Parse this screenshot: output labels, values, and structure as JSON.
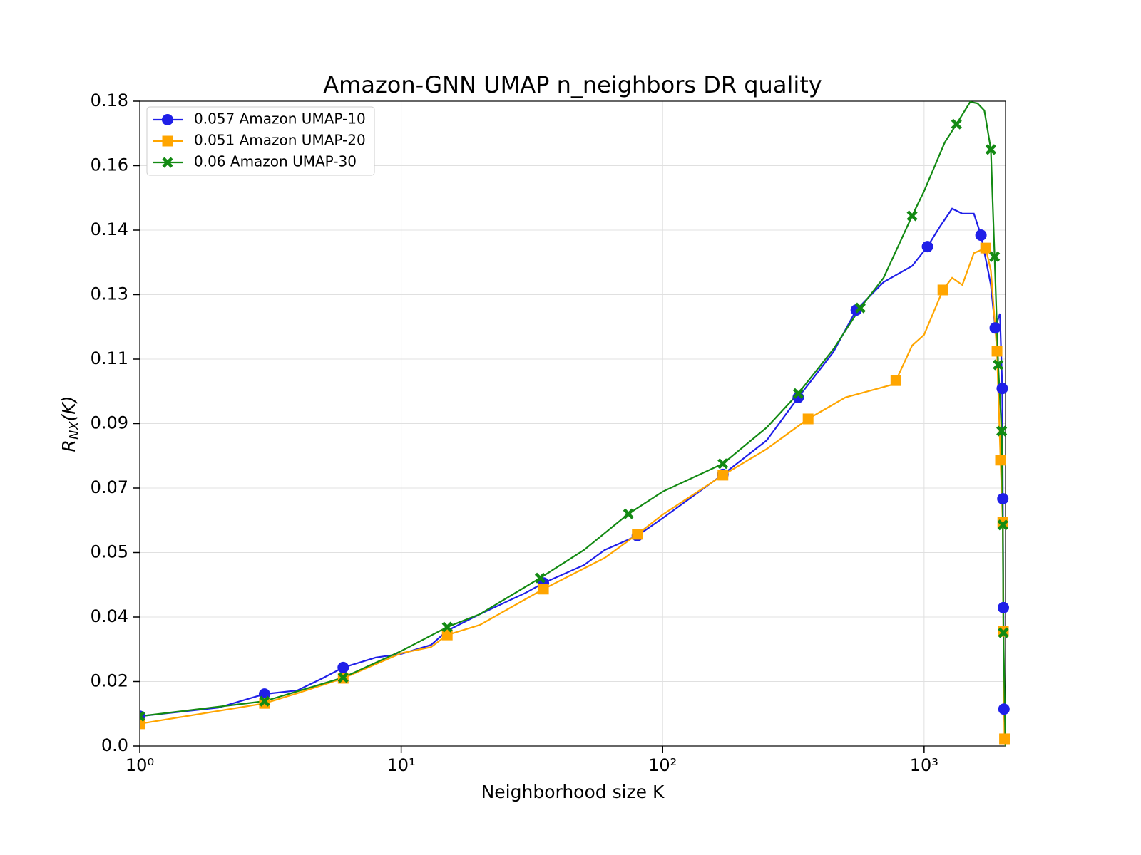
{
  "chart_data": {
    "type": "line",
    "title": "Amazon-GNN UMAP n_neighbors DR quality",
    "xlabel": "Neighborhood size K",
    "ylabel": {
      "main": "R",
      "sub": "NX",
      "rest": "(K)"
    },
    "xscale": "log",
    "grid": true,
    "legend": "upper left",
    "xlim": [
      1,
      2048
    ],
    "ylim": [
      0,
      0.18
    ],
    "xticks": [
      {
        "value": 1,
        "label": "10⁰"
      },
      {
        "value": 10,
        "label": "10¹"
      },
      {
        "value": 100,
        "label": "10²"
      },
      {
        "value": 1000,
        "label": "10³"
      }
    ],
    "yticks": [
      {
        "value": 0,
        "label": "0.0"
      },
      {
        "value": 0.018,
        "label": "0.02"
      },
      {
        "value": 0.036,
        "label": "0.04"
      },
      {
        "value": 0.054,
        "label": "0.05"
      },
      {
        "value": 0.072,
        "label": "0.07"
      },
      0.09,
      {
        "value": 0.108,
        "label": "0.11"
      },
      {
        "value": 0.126,
        "label": "0.13"
      },
      {
        "value": 0.144,
        "label": "0.14"
      },
      {
        "value": 0.162,
        "label": "0.16"
      },
      0.18
    ],
    "series": [
      {
        "name": "0.057 Amazon UMAP-10",
        "color": "#1f1fe8",
        "marker": "circle",
        "x": [
          1,
          2,
          3,
          4,
          5,
          6,
          8,
          10,
          13,
          15,
          20,
          30,
          35,
          50,
          60,
          80,
          100,
          170,
          250,
          330,
          450,
          550,
          700,
          900,
          1030,
          1150,
          1280,
          1400,
          1550,
          1650,
          1800,
          1870,
          1950,
          1990,
          2000,
          2010,
          2020,
          2047
        ],
        "values": [
          0.0083,
          0.0107,
          0.0145,
          0.0155,
          0.0189,
          0.0219,
          0.0247,
          0.0257,
          0.0282,
          0.0322,
          0.0368,
          0.0428,
          0.0455,
          0.0505,
          0.0547,
          0.0587,
          0.0636,
          0.0758,
          0.0853,
          0.0973,
          0.11,
          0.1217,
          0.1295,
          0.134,
          0.1394,
          0.145,
          0.15,
          0.1486,
          0.1486,
          0.1426,
          0.1287,
          0.1167,
          0.1207,
          0.0998,
          0.069,
          0.0386,
          0.0103,
          0
        ],
        "marker_x": [
          1,
          3,
          6,
          35,
          80,
          170,
          330,
          550,
          1030,
          1650,
          1870,
          1990,
          2000,
          2010,
          2020
        ],
        "marker_values": [
          0.0083,
          0.0145,
          0.0219,
          0.0455,
          0.0587,
          0.0758,
          0.0973,
          0.1217,
          0.1394,
          0.1426,
          0.1167,
          0.0998,
          0.069,
          0.0386,
          0.0103
        ]
      },
      {
        "name": "0.051 Amazon UMAP-20",
        "color": "#ffa500",
        "marker": "square",
        "x": [
          1,
          3,
          4,
          6,
          10,
          13,
          15,
          20,
          35,
          60,
          80,
          100,
          170,
          250,
          360,
          500,
          750,
          780,
          900,
          1000,
          1180,
          1280,
          1400,
          1550,
          1720,
          1800,
          1900,
          1960,
          2000,
          2010,
          2030,
          2047
        ],
        "values": [
          0.0062,
          0.0119,
          0.0147,
          0.0189,
          0.0259,
          0.0276,
          0.031,
          0.0338,
          0.0438,
          0.0525,
          0.0591,
          0.0646,
          0.0756,
          0.0829,
          0.0913,
          0.0973,
          0.1008,
          0.102,
          0.1118,
          0.1148,
          0.1273,
          0.1307,
          0.1287,
          0.1376,
          0.139,
          0.1327,
          0.1102,
          0.0798,
          0.0624,
          0.032,
          0.002,
          0
        ],
        "marker_x": [
          1,
          3,
          6,
          15,
          35,
          80,
          170,
          360,
          780,
          1180,
          1720,
          1900,
          1960,
          2000,
          2010,
          2030
        ],
        "marker_values": [
          0.0062,
          0.0119,
          0.0189,
          0.031,
          0.0438,
          0.0591,
          0.0756,
          0.0913,
          0.102,
          0.1273,
          0.139,
          0.1102,
          0.0798,
          0.0624,
          0.032,
          0.002
        ]
      },
      {
        "name": "0.06 Amazon UMAP-30",
        "color": "#138a13",
        "marker": "x",
        "x": [
          1,
          3,
          6,
          10,
          15,
          20,
          34,
          50,
          74,
          100,
          170,
          250,
          330,
          450,
          570,
          700,
          900,
          1000,
          1200,
          1330,
          1500,
          1600,
          1700,
          1800,
          1860,
          1920,
          1980,
          2000,
          2010,
          2047
        ],
        "values": [
          0.0083,
          0.0125,
          0.0191,
          0.0265,
          0.0332,
          0.0368,
          0.0469,
          0.0547,
          0.0648,
          0.071,
          0.0788,
          0.0889,
          0.0984,
          0.1108,
          0.1223,
          0.1307,
          0.148,
          0.1549,
          0.1685,
          0.1736,
          0.1798,
          0.1794,
          0.1774,
          0.1665,
          0.1366,
          0.1064,
          0.0879,
          0.0617,
          0.0316,
          0
        ],
        "marker_x": [
          1,
          3,
          6,
          15,
          34,
          74,
          170,
          330,
          570,
          900,
          1330,
          1800,
          1860,
          1920,
          1980,
          2000,
          2010
        ],
        "marker_values": [
          0.0083,
          0.0125,
          0.0191,
          0.0332,
          0.0469,
          0.0648,
          0.0788,
          0.0984,
          0.1223,
          0.148,
          0.1736,
          0.1665,
          0.1366,
          0.1064,
          0.0879,
          0.0617,
          0.0316
        ]
      }
    ]
  }
}
